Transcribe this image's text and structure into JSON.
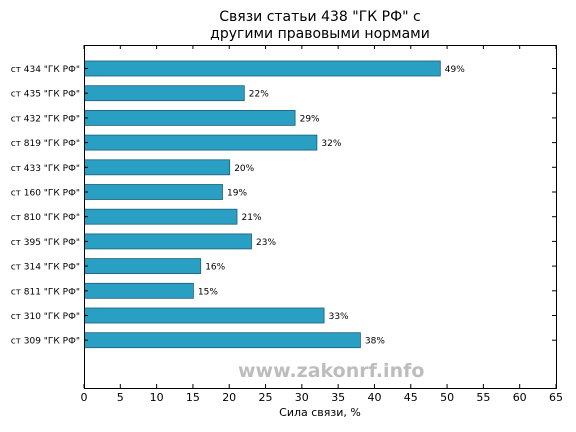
{
  "chart_data": {
    "type": "bar",
    "orientation": "horizontal",
    "title_lines": [
      "Связи статьи 438 \"ГК РФ\" с",
      "другими правовыми нормами"
    ],
    "xlabel": "Сила связи, %",
    "ylabel": "",
    "xlim": [
      0,
      65
    ],
    "xticks": [
      0,
      5,
      10,
      15,
      20,
      25,
      30,
      35,
      40,
      45,
      50,
      55,
      60,
      65
    ],
    "grid": false,
    "categories": [
      "ст 434 \"ГК РФ\"",
      "ст 435 \"ГК РФ\"",
      "ст 432 \"ГК РФ\"",
      "ст 819 \"ГК РФ\"",
      "ст 433 \"ГК РФ\"",
      "ст 160 \"ГК РФ\"",
      "ст 810 \"ГК РФ\"",
      "ст 395 \"ГК РФ\"",
      "ст 314 \"ГК РФ\"",
      "ст 811 \"ГК РФ\"",
      "ст 310 \"ГК РФ\"",
      "ст 309 \"ГК РФ\""
    ],
    "values": [
      49,
      22,
      29,
      32,
      20,
      19,
      21,
      23,
      16,
      15,
      33,
      38
    ],
    "value_labels": [
      "49%",
      "22%",
      "29%",
      "32%",
      "20%",
      "19%",
      "21%",
      "23%",
      "16%",
      "15%",
      "33%",
      "38%"
    ],
    "bar_color": "#2a9fc4",
    "bar_edge_color": "#1d5e74"
  },
  "watermark": "www.zakonrf.info"
}
